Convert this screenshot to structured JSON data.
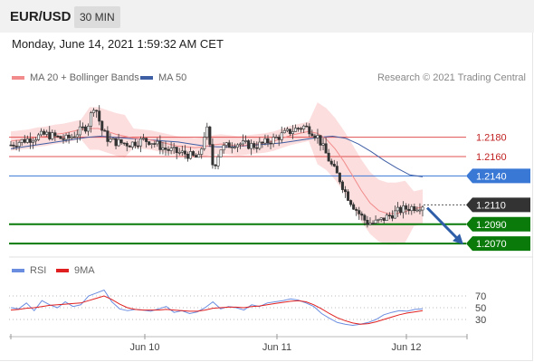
{
  "header": {
    "symbol": "EUR/USD",
    "timeframe": "30 MIN",
    "datetime": "Monday, June 14, 2021 1:59:32 AM CET"
  },
  "legend": {
    "ma_label": "MA 20 + Bollinger Bands",
    "ma50_label": "MA 50",
    "credit": "Research © 2021 Trading Central"
  },
  "rsi_legend": {
    "rsi_label": "RSI",
    "ma_label": "9MA"
  },
  "colors": {
    "ma20": "#f28b8b",
    "ma50": "#3f5fa5",
    "band": "#fbd3d3",
    "support": "#0a7a0a",
    "resistance": "#e05050",
    "pivot": "#3a78d6",
    "current": "#333333",
    "arrow": "#2f5ea8",
    "rsi": "#6b8de0",
    "rsi_ma": "#e02020"
  },
  "chart_data": [
    {
      "type": "candlestick",
      "y_range": [
        1.2058,
        1.2232
      ],
      "x_ticks": [
        "Jun 10",
        "Jun 11",
        "Jun 12"
      ],
      "series": [
        {
          "name": "MA 20 + Bollinger Bands",
          "note": "moving average with band"
        },
        {
          "name": "MA 50"
        }
      ],
      "levels": [
        {
          "value": 1.218,
          "label": "1.2180",
          "kind": "resistance"
        },
        {
          "value": 1.216,
          "label": "1.2160",
          "kind": "resistance"
        },
        {
          "value": 1.214,
          "label": "1.2140",
          "kind": "pivot"
        },
        {
          "value": 1.211,
          "label": "1.2110",
          "kind": "current"
        },
        {
          "value": 1.209,
          "label": "1.2090",
          "kind": "support"
        },
        {
          "value": 1.207,
          "label": "1.2070",
          "kind": "support"
        }
      ],
      "close_path": [
        1.2172,
        1.2175,
        1.2177,
        1.2179,
        1.2181,
        1.2183,
        1.2181,
        1.2179,
        1.2178,
        1.2182,
        1.2187,
        1.2192,
        1.2215,
        1.2188,
        1.2177,
        1.2175,
        1.2174,
        1.2173,
        1.2175,
        1.2177,
        1.2176,
        1.2172,
        1.2168,
        1.2166,
        1.2164,
        1.2163,
        1.216,
        1.2158,
        1.2192,
        1.2148,
        1.2168,
        1.2171,
        1.2174,
        1.2173,
        1.2172,
        1.2171,
        1.2173,
        1.2176,
        1.2179,
        1.2183,
        1.2186,
        1.2189,
        1.2191,
        1.2187,
        1.218,
        1.2165,
        1.215,
        1.2138,
        1.2122,
        1.211,
        1.21,
        1.2092,
        1.2091,
        1.2094,
        1.2098,
        1.2102,
        1.2105,
        1.2107,
        1.2108,
        1.211
      ],
      "ma20": [
        1.2176,
        1.2177,
        1.2178,
        1.218,
        1.2181,
        1.2183,
        1.2184,
        1.2186,
        1.2188,
        1.2189,
        1.2189,
        1.2186,
        1.2183,
        1.2181,
        1.2179,
        1.2178,
        1.2177,
        1.2175,
        1.2173,
        1.2171,
        1.217,
        1.2169,
        1.217,
        1.2172,
        1.2173,
        1.2172,
        1.2171,
        1.2172,
        1.2173,
        1.2174,
        1.2176,
        1.2179,
        1.2182,
        1.2184,
        1.2186,
        1.2184,
        1.2178,
        1.2168,
        1.2155,
        1.214,
        1.2125,
        1.2112,
        1.2104,
        1.2101,
        1.2101,
        1.2103,
        1.2106,
        1.2108
      ],
      "ma50": [
        1.2168,
        1.217,
        1.2172,
        1.2174,
        1.2176,
        1.2178,
        1.218,
        1.2181,
        1.218,
        1.2179,
        1.2178,
        1.2177,
        1.2176,
        1.2175,
        1.2173,
        1.2171,
        1.217,
        1.217,
        1.2171,
        1.2172,
        1.2173,
        1.2174,
        1.2176,
        1.2178,
        1.218,
        1.2181,
        1.2179,
        1.2173,
        1.2165,
        1.2156,
        1.2148,
        1.2141,
        1.2139
      ],
      "ylabel": "",
      "xlabel": ""
    },
    {
      "type": "line",
      "y_ticks": [
        70,
        50,
        30
      ],
      "y_range": [
        10,
        90
      ],
      "series": [
        {
          "name": "RSI",
          "values": [
            50,
            48,
            58,
            45,
            62,
            55,
            50,
            60,
            52,
            55,
            70,
            75,
            80,
            60,
            48,
            45,
            47,
            46,
            44,
            48,
            52,
            42,
            45,
            40,
            43,
            50,
            60,
            48,
            52,
            50,
            46,
            55,
            52,
            58,
            60,
            62,
            65,
            63,
            58,
            52,
            40,
            32,
            25,
            22,
            20,
            22,
            25,
            30,
            38,
            42,
            45,
            44,
            47,
            48
          ]
        },
        {
          "name": "9MA",
          "values": [
            46,
            47,
            49,
            50,
            52,
            54,
            55,
            56,
            57,
            58,
            62,
            66,
            70,
            64,
            56,
            50,
            47,
            46,
            46,
            46,
            47,
            46,
            45,
            44,
            44,
            46,
            49,
            50,
            51,
            51,
            50,
            52,
            53,
            55,
            57,
            59,
            61,
            62,
            60,
            55,
            48,
            40,
            33,
            28,
            24,
            22,
            23,
            26,
            30,
            34,
            38,
            41,
            43,
            45
          ]
        }
      ]
    }
  ]
}
